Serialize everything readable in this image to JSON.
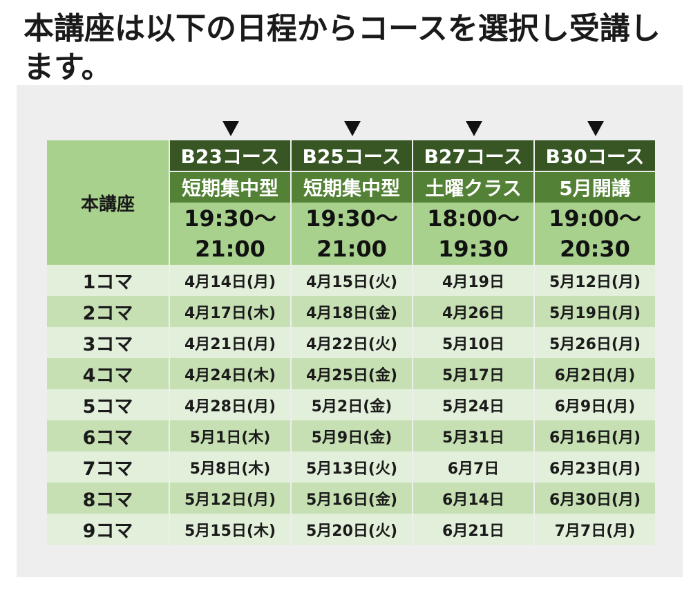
{
  "intro_text": "本講座は以下の日程からコースを選択し受講します。",
  "table": {
    "corner_label": "本講座",
    "courses": [
      {
        "code": "B23コース",
        "type": "短期集中型",
        "time_start": "19:30～",
        "time_end": "21:00"
      },
      {
        "code": "B25コース",
        "type": "短期集中型",
        "time_start": "19:30～",
        "time_end": "21:00"
      },
      {
        "code": "B27コース",
        "type": "土曜クラス",
        "time_start": "18:00～",
        "time_end": "19:30"
      },
      {
        "code": "B30コース",
        "type": "5月開講",
        "time_start": "19:00～",
        "time_end": "20:30"
      }
    ],
    "rows": [
      {
        "label": "1コマ",
        "dates": [
          "4月14日(月)",
          "4月15日(火)",
          "4月19日",
          "5月12日(月)"
        ]
      },
      {
        "label": "2コマ",
        "dates": [
          "4月17日(木)",
          "4月18日(金)",
          "4月26日",
          "5月19日(月)"
        ]
      },
      {
        "label": "3コマ",
        "dates": [
          "4月21日(月)",
          "4月22日(火)",
          "5月10日",
          "5月26日(月)"
        ]
      },
      {
        "label": "4コマ",
        "dates": [
          "4月24日(木)",
          "4月25日(金)",
          "5月17日",
          "6月2日(月)"
        ]
      },
      {
        "label": "5コマ",
        "dates": [
          "4月28日(月)",
          "5月2日(金)",
          "5月24日",
          "6月9日(月)"
        ]
      },
      {
        "label": "6コマ",
        "dates": [
          "5月1日(木)",
          "5月9日(金)",
          "5月31日",
          "6月16日(月)"
        ]
      },
      {
        "label": "7コマ",
        "dates": [
          "5月8日(木)",
          "5月13日(火)",
          "6月7日",
          "6月23日(月)"
        ]
      },
      {
        "label": "8コマ",
        "dates": [
          "5月12日(月)",
          "5月16日(金)",
          "6月14日",
          "6月30日(月)"
        ]
      },
      {
        "label": "9コマ",
        "dates": [
          "5月15日(木)",
          "5月20日(火)",
          "6月21日",
          "7月7日(月)"
        ]
      }
    ]
  },
  "colors": {
    "panel_background": "#eeeeee",
    "course_code_header": "#375623",
    "course_type_header": "#538135",
    "time_header": "#a9d18e",
    "row_light": "#e2efda",
    "row_dark": "#c6e0b4"
  }
}
